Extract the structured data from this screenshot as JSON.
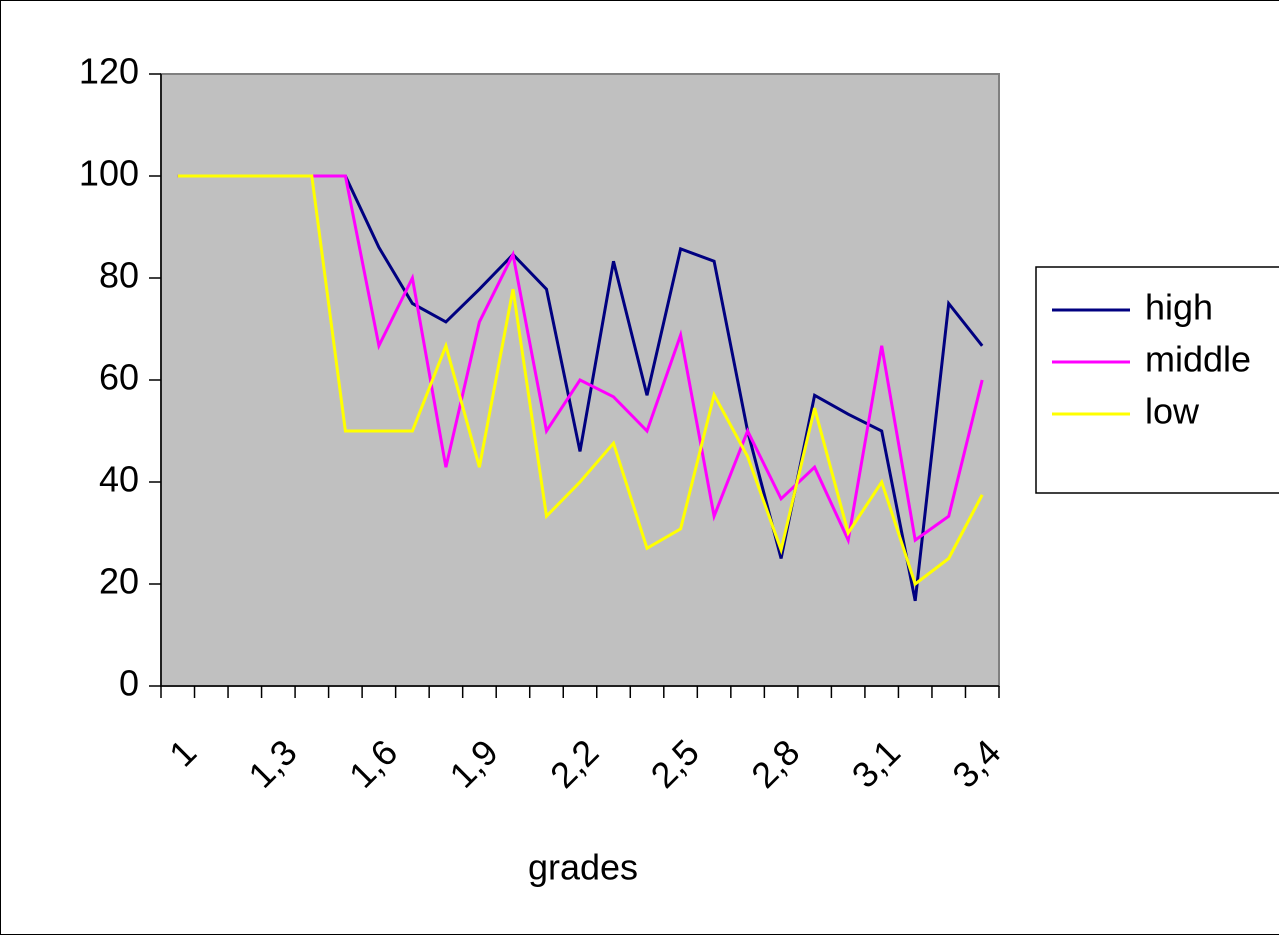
{
  "chart_data": {
    "type": "line",
    "x_label": "grades",
    "categories": [
      "1",
      null,
      null,
      "1,3",
      null,
      null,
      "1,6",
      null,
      null,
      "1,9",
      null,
      null,
      "2,2",
      null,
      null,
      "2,5",
      null,
      null,
      "2,8",
      null,
      null,
      "3,1",
      null,
      null,
      "3,4"
    ],
    "series": [
      {
        "name": "high",
        "color": "#000080",
        "values": [
          100,
          100,
          100,
          100,
          100,
          100,
          86,
          75,
          71.4,
          77.8,
          84.6,
          77.8,
          46,
          83.3,
          57,
          85.7,
          83.3,
          50,
          25,
          57,
          53.3,
          50,
          16.7,
          75,
          66.7
        ]
      },
      {
        "name": "middle",
        "color": "#ff00ff",
        "values": [
          100,
          100,
          100,
          100,
          100,
          100,
          66.7,
          80,
          42.9,
          71.4,
          84.6,
          50,
          60,
          56.7,
          50,
          68.8,
          33.3,
          50,
          36.7,
          42.9,
          28.6,
          66.7,
          28.6,
          33.3,
          60
        ]
      },
      {
        "name": "low",
        "color": "#ffff00",
        "values": [
          100,
          100,
          100,
          100,
          100,
          50,
          50,
          50,
          66.7,
          42.9,
          77.8,
          33.3,
          40,
          47.6,
          27,
          30.8,
          57.1,
          45,
          26.7,
          54.5,
          30,
          40,
          20,
          25,
          37.5
        ]
      }
    ],
    "ylim": [
      0,
      120
    ],
    "yticks": [
      0,
      20,
      40,
      60,
      80,
      100,
      120
    ],
    "grid": false,
    "legend": "right",
    "plot_background": "#c0c0c0"
  }
}
